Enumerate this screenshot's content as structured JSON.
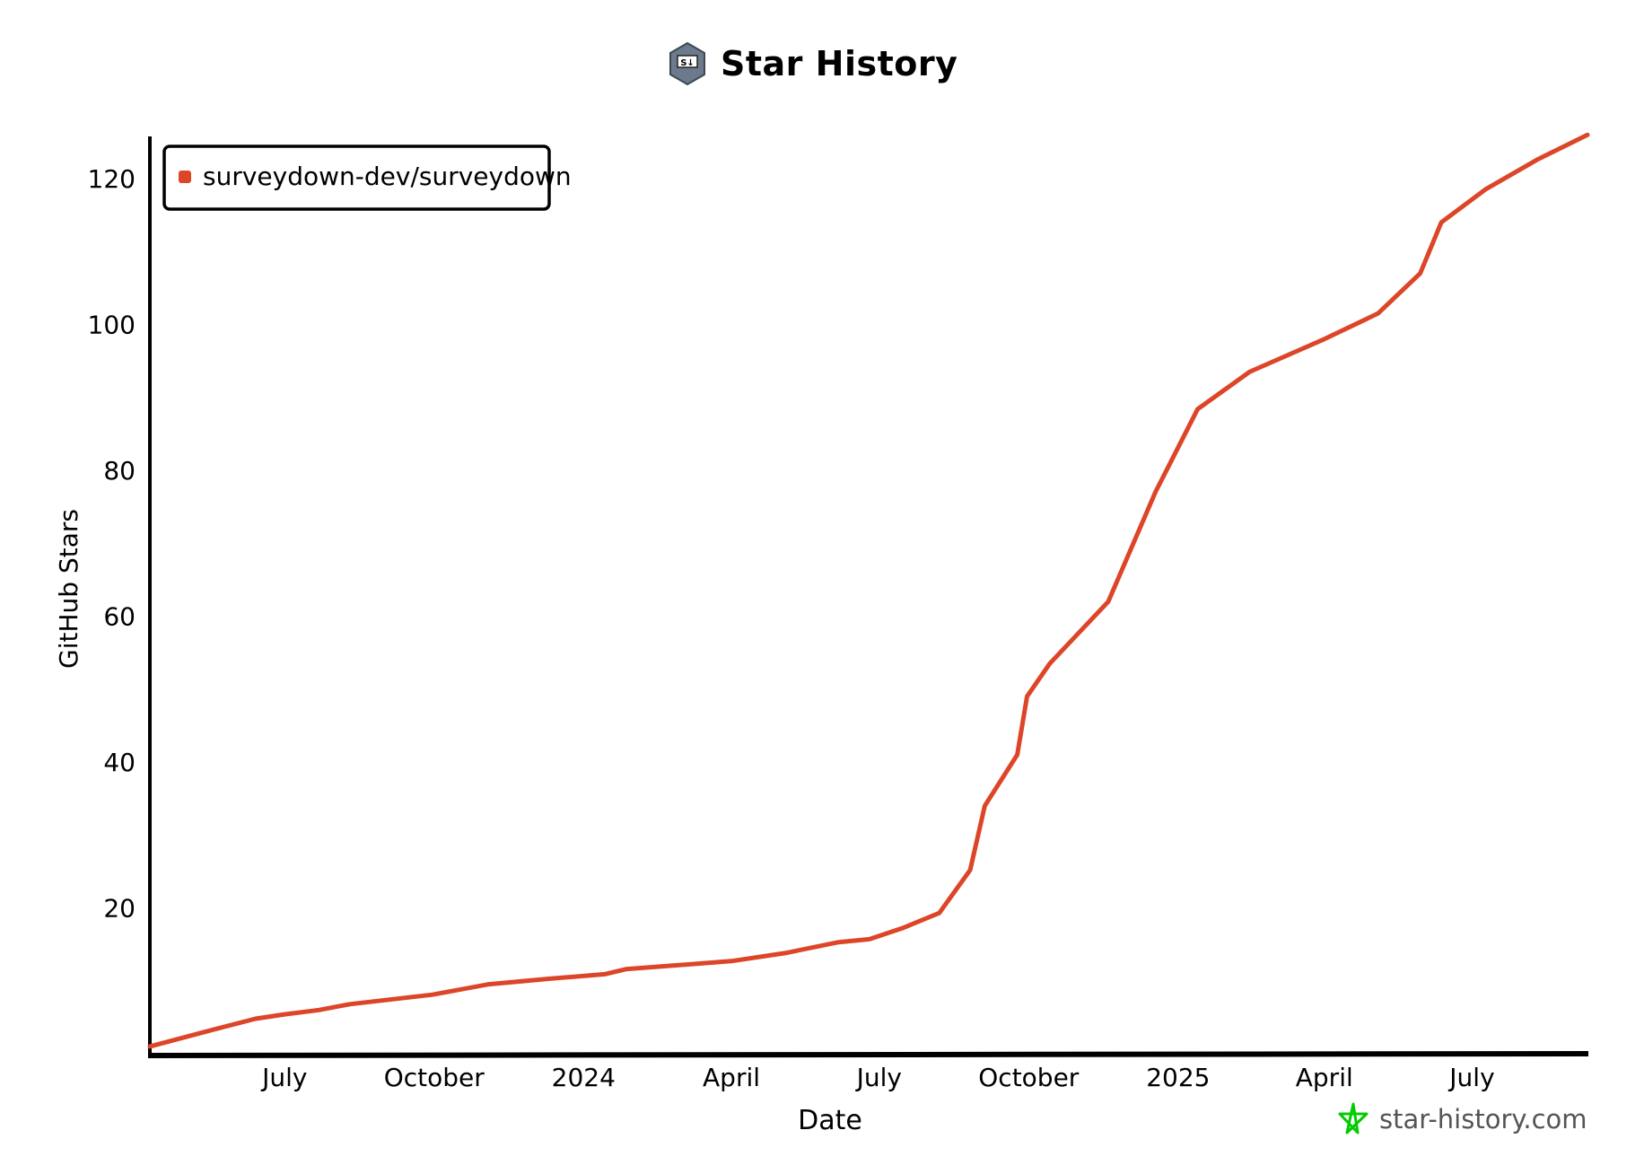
{
  "title": "Star History",
  "logo_text": "S↓",
  "watermark": "star-history.com",
  "colors": {
    "series": "#dd4528",
    "axis": "#000000",
    "watermark_star": "#00cc00",
    "logo": "#6b7a8c"
  },
  "chart_data": {
    "type": "line",
    "title": "Star History",
    "xlabel": "Date",
    "ylabel": "GitHub Stars",
    "xlim": [
      "2023-04-09",
      "2025-09-10"
    ],
    "ylim": [
      0,
      126
    ],
    "yticks": [
      20,
      40,
      60,
      80,
      100,
      120
    ],
    "xticks": [
      {
        "date": "2023-07-01",
        "label": "July"
      },
      {
        "date": "2023-10-01",
        "label": "October"
      },
      {
        "date": "2024-01-01",
        "label": "2024"
      },
      {
        "date": "2024-04-01",
        "label": "April"
      },
      {
        "date": "2024-07-01",
        "label": "July"
      },
      {
        "date": "2024-10-01",
        "label": "October"
      },
      {
        "date": "2025-01-01",
        "label": "2025"
      },
      {
        "date": "2025-04-01",
        "label": "April"
      },
      {
        "date": "2025-07-01",
        "label": "July"
      }
    ],
    "legend": {
      "position": "top-left"
    },
    "grid": false,
    "series": [
      {
        "name": "surveydown-dev/surveydown",
        "x": [
          "2023-04-09",
          "2023-05-18",
          "2023-06-13",
          "2023-07-01",
          "2023-07-22",
          "2023-08-10",
          "2023-09-30",
          "2023-11-03",
          "2023-12-12",
          "2024-01-14",
          "2024-01-27",
          "2024-04-01",
          "2024-05-04",
          "2024-06-06",
          "2024-06-25",
          "2024-07-15",
          "2024-08-07",
          "2024-08-26",
          "2024-09-04",
          "2024-09-24",
          "2024-09-30",
          "2024-10-14",
          "2024-11-19",
          "2024-12-18",
          "2025-01-13",
          "2025-02-14",
          "2025-04-01",
          "2025-05-04",
          "2025-05-30",
          "2025-06-12",
          "2025-07-09",
          "2025-08-10",
          "2025-09-10"
        ],
        "y": [
          1,
          3.3,
          4.8,
          5.4,
          6,
          6.8,
          8.1,
          9.5,
          10.3,
          10.9,
          11.6,
          12.7,
          13.8,
          15.3,
          15.7,
          17.2,
          19.3,
          25.2,
          34,
          41,
          49,
          53.5,
          62,
          77,
          88.4,
          93.5,
          98,
          101.5,
          107,
          114,
          118.5,
          122.6,
          126
        ]
      }
    ]
  }
}
